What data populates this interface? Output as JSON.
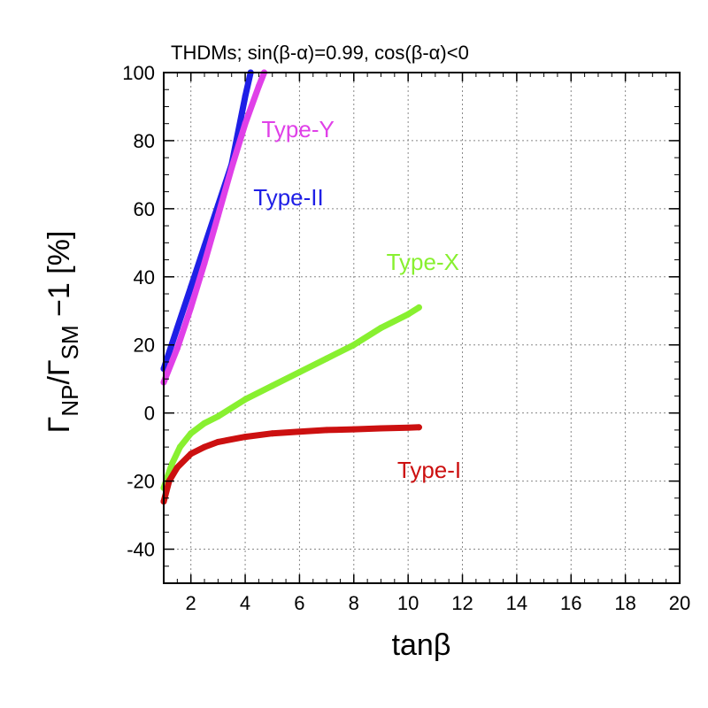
{
  "chart_data": {
    "type": "line",
    "title": "THDMs; sin(β-α)=0.99, cos(β-α)<0",
    "xlabel": "tanβ",
    "ylabel": {
      "main1": "Γ",
      "sub1": "NP",
      "main2": "/Γ",
      "sub2": "SM",
      "rest": " −1 [%]"
    },
    "xlim": [
      1,
      20
    ],
    "ylim": [
      -50,
      100
    ],
    "xticks": [
      2,
      4,
      6,
      8,
      10,
      12,
      14,
      16,
      18,
      20
    ],
    "yticks": [
      -40,
      -20,
      0,
      20,
      40,
      60,
      80,
      100
    ],
    "grid": true,
    "series": [
      {
        "name": "Type-II",
        "color": "#1f1fe6",
        "label_at": [
          4.3,
          61
        ],
        "x": [
          1.0,
          1.5,
          2.0,
          2.5,
          3.0,
          3.5,
          4.0,
          4.2
        ],
        "y": [
          13,
          25,
          37,
          49,
          61,
          73,
          93,
          100
        ]
      },
      {
        "name": "Type-Y",
        "color": "#e040e8",
        "label_at": [
          4.6,
          81
        ],
        "x": [
          1.0,
          1.5,
          2.0,
          2.5,
          3.0,
          3.5,
          4.0,
          4.5,
          4.7
        ],
        "y": [
          9,
          19,
          31,
          44,
          58,
          72,
          85,
          96,
          100
        ]
      },
      {
        "name": "Type-X",
        "color": "#88f030",
        "label_at": [
          9.2,
          42
        ],
        "x": [
          1.0,
          1.3,
          1.6,
          2.0,
          2.5,
          3.0,
          4.0,
          5.0,
          6.0,
          7.0,
          8.0,
          9.0,
          10.0,
          10.4
        ],
        "y": [
          -22,
          -15,
          -10,
          -6,
          -3,
          -1,
          4,
          8,
          12,
          16,
          20,
          25,
          29,
          31
        ]
      },
      {
        "name": "Type-I",
        "color": "#cc1010",
        "label_at": [
          9.6,
          -19
        ],
        "x": [
          1.0,
          1.2,
          1.5,
          2.0,
          2.5,
          3.0,
          4.0,
          5.0,
          6.0,
          7.0,
          8.0,
          9.0,
          10.0,
          10.4
        ],
        "y": [
          -26,
          -20,
          -16,
          -12,
          -10,
          -8.5,
          -7,
          -6,
          -5.5,
          -5,
          -4.8,
          -4.5,
          -4.3,
          -4.2
        ]
      }
    ]
  }
}
